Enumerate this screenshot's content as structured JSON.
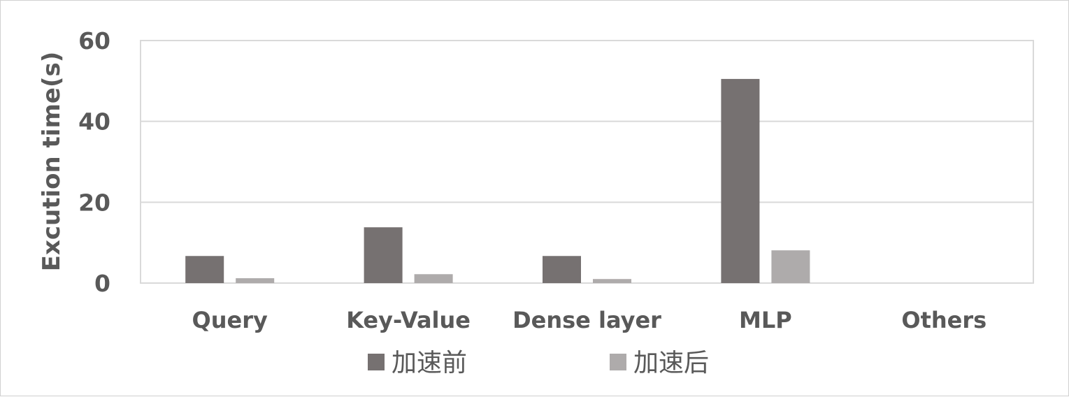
{
  "chart_data": {
    "type": "bar",
    "title": "",
    "xlabel": "",
    "ylabel": "Excution time(s)",
    "categories": [
      "Query",
      "Key-Value",
      "Dense layer",
      "MLP",
      "Others"
    ],
    "series": [
      {
        "name": "加速前",
        "color": "#767171",
        "values": [
          6.7,
          13.8,
          6.7,
          50.5,
          0
        ]
      },
      {
        "name": "加速后",
        "color": "#AEABAB",
        "values": [
          1.2,
          2.2,
          1.0,
          8.1,
          0
        ]
      }
    ],
    "ylim": [
      0,
      60
    ],
    "yticks": [
      0,
      20,
      40,
      60
    ],
    "grid": true,
    "legend_position": "bottom"
  }
}
